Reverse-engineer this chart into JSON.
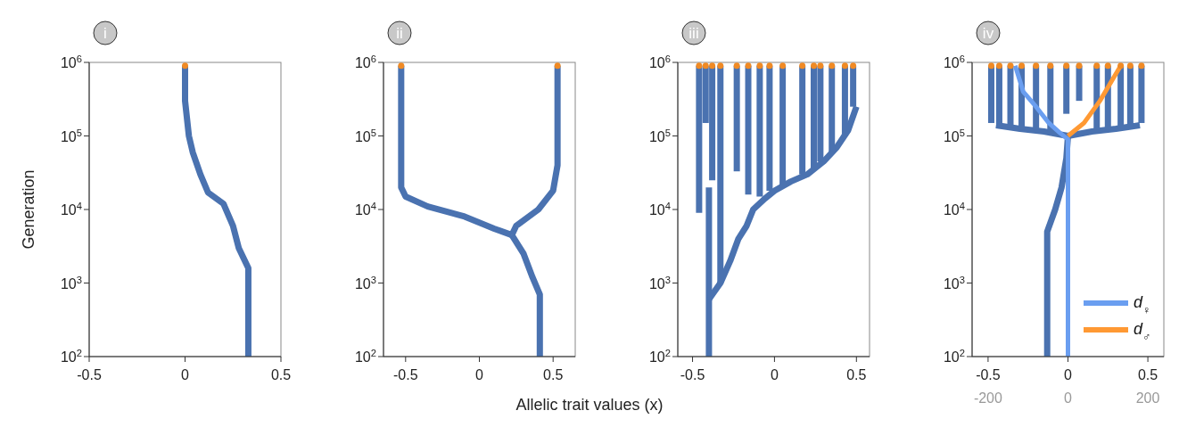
{
  "chart_data": [
    {
      "type": "line",
      "title": "i",
      "ylabel": "Generation",
      "log": "y",
      "xlim": [
        -0.5,
        0.5
      ],
      "xticks": [
        -0.5,
        0,
        0.5
      ],
      "ylim": [
        100,
        1000000
      ],
      "yticks": [
        {
          "value": 100,
          "label": "10$^{2}$"
        },
        {
          "value": 1000,
          "label": "10$^{3}$"
        },
        {
          "value": 10000,
          "label": "10$^{4}$"
        },
        {
          "value": 100000,
          "label": "10$^{5}$"
        },
        {
          "value": 1000000,
          "label": "10$^{6}$"
        }
      ],
      "series": [
        {
          "color": "#4a72b0",
          "x": [
            0.33,
            0.33,
            0.28,
            0.25,
            0.2,
            0.12,
            0.08,
            0.04,
            0.02,
            0,
            0
          ],
          "values": [
            100,
            1600,
            3000,
            6000,
            12000,
            17000,
            30000,
            60000,
            100000,
            300000,
            900000
          ]
        },
        {
          "type": "scatter",
          "color": "#f08a24",
          "x": [
            0
          ],
          "values": [
            900000
          ]
        }
      ]
    },
    {
      "type": "line",
      "title": "ii",
      "xlabel": "Allelic trait values (x)",
      "log": "y",
      "xlim": [
        -0.65,
        0.65
      ],
      "xticks": [
        -0.5,
        0,
        0.5
      ],
      "ylim": [
        100,
        1000000
      ],
      "yticks": [
        {
          "value": 100,
          "label": "10$^{2}$"
        },
        {
          "value": 1000,
          "label": "10$^{3}$"
        },
        {
          "value": 10000,
          "label": "10$^{4}$"
        },
        {
          "value": 100000,
          "label": "10$^{5}$"
        },
        {
          "value": 1000000,
          "label": "10$^{6}$"
        }
      ],
      "series": [
        {
          "color": "#4a72b0",
          "x": [
            0.41,
            0.41,
            0.36,
            0.3,
            0.22
          ],
          "values": [
            100,
            700,
            1200,
            2500,
            4500
          ]
        },
        {
          "color": "#4a72b0",
          "x": [
            0.22,
            0.1,
            -0.1,
            -0.35,
            -0.5,
            -0.53,
            -0.53
          ],
          "values": [
            4500,
            5500,
            8000,
            11000,
            15000,
            20000,
            900000
          ]
        },
        {
          "color": "#4a72b0",
          "x": [
            0.22,
            0.25,
            0.4,
            0.5,
            0.53,
            0.53
          ],
          "values": [
            4500,
            6000,
            10000,
            18000,
            40000,
            900000
          ]
        },
        {
          "type": "scatter",
          "color": "#f08a24",
          "x": [
            -0.53,
            0.53
          ],
          "values": [
            900000,
            900000
          ]
        }
      ]
    },
    {
      "type": "line",
      "title": "iii",
      "log": "y",
      "xlim": [
        -0.59,
        0.58
      ],
      "xticks": [
        -0.5,
        0,
        0.5
      ],
      "ylim": [
        100,
        1000000
      ],
      "yticks": [
        {
          "value": 100,
          "label": "10$^{2}$"
        },
        {
          "value": 1000,
          "label": "10$^{3}$"
        },
        {
          "value": 10000,
          "label": "10$^{4}$"
        },
        {
          "value": 100000,
          "label": "10$^{5}$"
        },
        {
          "value": 1000000,
          "label": "10$^{6}$"
        }
      ],
      "series": [
        {
          "color": "#4a72b0",
          "x": [
            -0.4,
            -0.4
          ],
          "values": [
            100,
            20000
          ]
        },
        {
          "color": "#4a72b0",
          "x": [
            -0.4,
            -0.33,
            -0.27,
            -0.22,
            -0.17,
            -0.13,
            -0.06,
            0,
            0.1,
            0.2,
            0.3,
            0.38,
            0.45,
            0.5
          ],
          "values": [
            600,
            1000,
            2000,
            4000,
            6000,
            10000,
            14000,
            18000,
            24000,
            30000,
            45000,
            70000,
            120000,
            250000
          ]
        },
        {
          "color": "#4a72b0",
          "x": [
            -0.46,
            -0.46
          ],
          "values": [
            9000,
            900000
          ]
        },
        {
          "color": "#4a72b0",
          "x": [
            -0.42,
            -0.42
          ],
          "values": [
            150000,
            900000
          ]
        },
        {
          "color": "#4a72b0",
          "x": [
            -0.38,
            -0.38
          ],
          "values": [
            25000,
            900000
          ]
        },
        {
          "color": "#4a72b0",
          "x": [
            -0.33,
            -0.33
          ],
          "values": [
            1000,
            900000
          ]
        },
        {
          "color": "#4a72b0",
          "x": [
            -0.23,
            -0.23
          ],
          "values": [
            33000,
            900000
          ]
        },
        {
          "color": "#4a72b0",
          "x": [
            -0.16,
            -0.16
          ],
          "values": [
            16000,
            900000
          ]
        },
        {
          "color": "#4a72b0",
          "x": [
            -0.09,
            -0.09
          ],
          "values": [
            15000,
            900000
          ]
        },
        {
          "color": "#4a72b0",
          "x": [
            -0.03,
            -0.03
          ],
          "values": [
            18000,
            900000
          ]
        },
        {
          "color": "#4a72b0",
          "x": [
            0.05,
            0.05
          ],
          "values": [
            20000,
            900000
          ]
        },
        {
          "color": "#4a72b0",
          "x": [
            0.17,
            0.17
          ],
          "values": [
            30000,
            900000
          ]
        },
        {
          "color": "#4a72b0",
          "x": [
            0.24,
            0.24
          ],
          "values": [
            35000,
            900000
          ]
        },
        {
          "color": "#4a72b0",
          "x": [
            0.28,
            0.28
          ],
          "values": [
            45000,
            900000
          ]
        },
        {
          "color": "#4a72b0",
          "x": [
            0.35,
            0.35
          ],
          "values": [
            60000,
            900000
          ]
        },
        {
          "color": "#4a72b0",
          "x": [
            0.43,
            0.43
          ],
          "values": [
            100000,
            900000
          ]
        },
        {
          "color": "#4a72b0",
          "x": [
            0.48,
            0.48
          ],
          "values": [
            250000,
            900000
          ]
        },
        {
          "type": "scatter",
          "color": "#f08a24",
          "x": [
            -0.46,
            -0.42,
            -0.38,
            -0.33,
            -0.23,
            -0.16,
            -0.09,
            -0.03,
            0.05,
            0.17,
            0.24,
            0.28,
            0.35,
            0.43,
            0.48
          ],
          "values": [
            900000,
            900000,
            900000,
            900000,
            900000,
            900000,
            900000,
            900000,
            900000,
            900000,
            900000,
            900000,
            900000,
            900000,
            900000
          ]
        }
      ]
    },
    {
      "type": "line",
      "title": "iv",
      "log": "y",
      "legend": "bottom right",
      "xlim": [
        -0.6,
        0.6
      ],
      "xticks": [
        -0.5,
        0,
        0.5
      ],
      "x2lim": [
        -240,
        240
      ],
      "x2ticks": [
        -200,
        0,
        200
      ],
      "ylim": [
        100,
        1000000
      ],
      "yticks": [
        {
          "value": 100,
          "label": "10$^{2}$"
        },
        {
          "value": 1000,
          "label": "10$^{3}$"
        },
        {
          "value": 10000,
          "label": "10$^{4}$"
        },
        {
          "value": 100000,
          "label": "10$^{5}$"
        },
        {
          "value": 1000000,
          "label": "10$^{6}$"
        }
      ],
      "series": [
        {
          "color": "#4a72b0",
          "x": [
            -0.13,
            -0.13,
            -0.08,
            -0.04,
            -0.01,
            0
          ],
          "values": [
            100,
            5000,
            10000,
            20000,
            50000,
            100000
          ]
        },
        {
          "color": "#4a72b0",
          "x": [
            -0.45,
            -0.3,
            -0.15,
            0,
            0.15,
            0.3,
            0.45
          ],
          "values": [
            140000,
            125000,
            115000,
            100000,
            115000,
            125000,
            140000
          ]
        },
        {
          "color": "#4a72b0",
          "x": [
            -0.48,
            -0.48
          ],
          "values": [
            150000,
            900000
          ]
        },
        {
          "color": "#4a72b0",
          "x": [
            -0.43,
            -0.43
          ],
          "values": [
            130000,
            900000
          ]
        },
        {
          "color": "#4a72b0",
          "x": [
            -0.36,
            -0.36
          ],
          "values": [
            130000,
            900000
          ]
        },
        {
          "color": "#4a72b0",
          "x": [
            -0.29,
            -0.29
          ],
          "values": [
            120000,
            900000
          ]
        },
        {
          "color": "#4a72b0",
          "x": [
            -0.2,
            -0.2
          ],
          "values": [
            120000,
            900000
          ]
        },
        {
          "color": "#4a72b0",
          "x": [
            -0.11,
            -0.11
          ],
          "values": [
            115000,
            900000
          ]
        },
        {
          "color": "#4a72b0",
          "x": [
            -0.01,
            -0.01
          ],
          "values": [
            200000,
            900000
          ]
        },
        {
          "color": "#4a72b0",
          "x": [
            0.07,
            0.07
          ],
          "values": [
            300000,
            900000
          ]
        },
        {
          "color": "#4a72b0",
          "x": [
            0.18,
            0.18
          ],
          "values": [
            120000,
            900000
          ]
        },
        {
          "color": "#4a72b0",
          "x": [
            0.25,
            0.25
          ],
          "values": [
            120000,
            900000
          ]
        },
        {
          "color": "#4a72b0",
          "x": [
            0.33,
            0.33
          ],
          "values": [
            125000,
            900000
          ]
        },
        {
          "color": "#4a72b0",
          "x": [
            0.39,
            0.39
          ],
          "values": [
            135000,
            900000
          ]
        },
        {
          "color": "#4a72b0",
          "x": [
            0.46,
            0.46
          ],
          "values": [
            150000,
            900000
          ]
        },
        {
          "type": "scatter",
          "color": "#f08a24",
          "x": [
            -0.48,
            -0.43,
            -0.36,
            -0.29,
            -0.2,
            -0.11,
            -0.01,
            0.07,
            0.18,
            0.25,
            0.33,
            0.39,
            0.46
          ],
          "values": [
            900000,
            900000,
            900000,
            900000,
            900000,
            900000,
            900000,
            900000,
            900000,
            900000,
            900000,
            900000,
            900000
          ]
        },
        {
          "name": "d$_{♀}$",
          "axis": "x2",
          "color": "#6a9ef0",
          "x": [
            0,
            0,
            -20,
            -48,
            -80,
            -112,
            -132
          ],
          "values": [
            100,
            90000,
            110000,
            150000,
            250000,
            400000,
            900000
          ]
        },
        {
          "name": "d$_{♂}$",
          "axis": "x2",
          "color": "#ff9933",
          "x": [
            0,
            40,
            80,
            132
          ],
          "values": [
            100000,
            150000,
            300000,
            900000
          ]
        }
      ]
    }
  ]
}
